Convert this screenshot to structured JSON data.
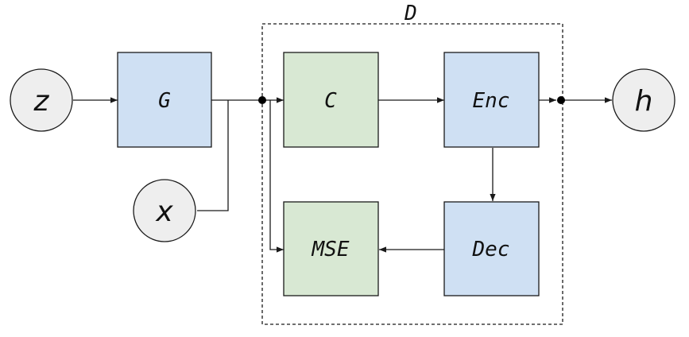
{
  "diagram": {
    "group": {
      "label": "D"
    },
    "nodes": {
      "z": "z",
      "x": "x",
      "h": "h"
    },
    "blocks": {
      "G": "G",
      "C": "C",
      "Enc": "Enc",
      "Dec": "Dec",
      "MSE": "MSE"
    },
    "colors": {
      "generator_block": "#cfe0f3",
      "critic_block": "#d8e8d3",
      "io_node": "#eeeeee"
    }
  }
}
